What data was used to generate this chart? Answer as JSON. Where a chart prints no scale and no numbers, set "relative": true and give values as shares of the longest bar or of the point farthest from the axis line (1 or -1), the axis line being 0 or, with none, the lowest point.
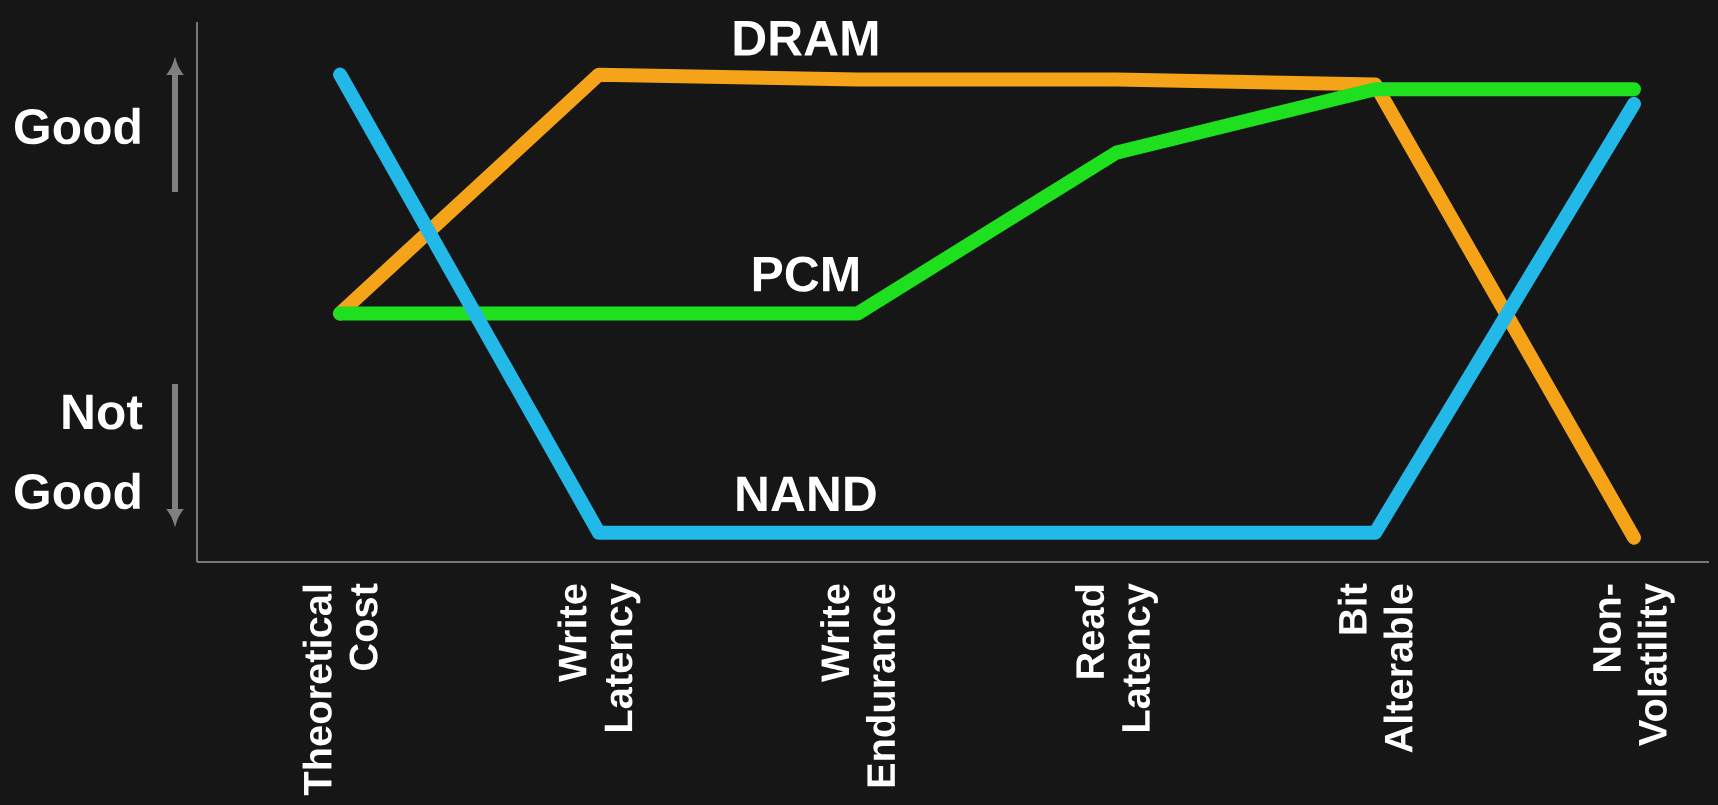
{
  "chart_data": {
    "type": "line",
    "relative": true,
    "line_style": "solid",
    "categories": [
      "Theoretical Cost",
      "Write Latency",
      "Write Endurance",
      "Read Latency",
      "Bit Alterable",
      "Non-Volatility"
    ],
    "series": [
      {
        "name": "DRAM",
        "color": "#f5a318",
        "values": [
          0.51,
          1.0,
          0.99,
          0.99,
          0.98,
          0.05
        ]
      },
      {
        "name": "PCM",
        "color": "#1ee01e",
        "values": [
          0.51,
          0.51,
          0.51,
          0.84,
          0.97,
          0.97
        ]
      },
      {
        "name": "NAND",
        "color": "#22b8e8",
        "values": [
          1.0,
          0.06,
          0.06,
          0.06,
          0.06,
          0.94
        ]
      }
    ],
    "annotations": [
      "Good",
      "Not Good"
    ]
  }
}
